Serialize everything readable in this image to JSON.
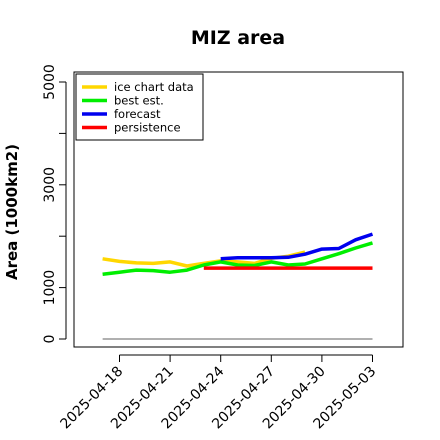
{
  "chart_data": {
    "type": "line",
    "title": "MIZ area",
    "xlabel": "",
    "ylabel": "Area (1000km2)",
    "xlim": [
      "2025-04-15",
      "2025-05-05"
    ],
    "ylim": [
      0,
      5000
    ],
    "yticks": [
      0,
      1000,
      3000,
      5000
    ],
    "yticks_minor": [
      2000,
      4000
    ],
    "xticks": [
      "2025-04-18",
      "2025-04-21",
      "2025-04-24",
      "2025-04-27",
      "2025-04-30",
      "2025-05-03"
    ],
    "highlight_xtick": "2025-04-24",
    "highlight_color": "#228b22",
    "grid": false,
    "legend_position": "top-left",
    "baseline": {
      "value": 0,
      "color": "#808080"
    },
    "series": [
      {
        "name": "ice chart data",
        "color": "#ffd700",
        "x": [
          "2025-04-17",
          "2025-04-18",
          "2025-04-19",
          "2025-04-20",
          "2025-04-21",
          "2025-04-22",
          "2025-04-23",
          "2025-04-24",
          "2025-04-25",
          "2025-04-26",
          "2025-04-27",
          "2025-04-28",
          "2025-04-29"
        ],
        "y": [
          1560,
          1510,
          1480,
          1470,
          1500,
          1420,
          1470,
          1520,
          1500,
          1470,
          1570,
          1610,
          1690
        ]
      },
      {
        "name": "best est.",
        "color": "#00ee00",
        "x": [
          "2025-04-17",
          "2025-04-18",
          "2025-04-19",
          "2025-04-20",
          "2025-04-21",
          "2025-04-22",
          "2025-04-23",
          "2025-04-24",
          "2025-04-25",
          "2025-04-26",
          "2025-04-27",
          "2025-04-28",
          "2025-04-29",
          "2025-04-30",
          "2025-05-01",
          "2025-05-02",
          "2025-05-03"
        ],
        "y": [
          1260,
          1300,
          1340,
          1330,
          1300,
          1340,
          1440,
          1500,
          1440,
          1430,
          1500,
          1440,
          1460,
          1560,
          1660,
          1770,
          1870
        ]
      },
      {
        "name": "forecast",
        "color": "#0000ee",
        "x": [
          "2025-04-24",
          "2025-04-25",
          "2025-04-26",
          "2025-04-27",
          "2025-04-28",
          "2025-04-29",
          "2025-04-30",
          "2025-05-01",
          "2025-05-02",
          "2025-05-03"
        ],
        "y": [
          1560,
          1580,
          1580,
          1580,
          1590,
          1650,
          1750,
          1760,
          1930,
          2040
        ]
      },
      {
        "name": "persistence",
        "color": "#ff0000",
        "x": [
          "2025-04-23",
          "2025-05-03"
        ],
        "y": [
          1380,
          1380
        ]
      }
    ]
  }
}
